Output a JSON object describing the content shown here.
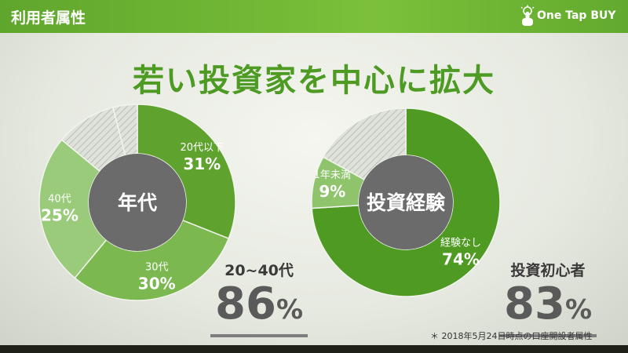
{
  "header": {
    "section_label": "利用者属性",
    "brand": "One Tap BUY"
  },
  "headline": "若い投資家を中心に拡大",
  "chart_data": [
    {
      "type": "pie",
      "center_label": "年代",
      "slices": [
        {
          "label": "20代以下",
          "value_text": "31%",
          "value": 31,
          "color": "#5fa32e",
          "labeled": true
        },
        {
          "label": "30代",
          "value_text": "30%",
          "value": 30,
          "color": "#7cb850",
          "labeled": true
        },
        {
          "label": "40代",
          "value_text": "25%",
          "value": 25,
          "color": "#9acb7a",
          "labeled": true
        },
        {
          "label": "",
          "value": 10,
          "color": "#d4d8cf",
          "labeled": false
        },
        {
          "label": "",
          "value": 4,
          "color": "#c6cbc0",
          "labeled": false
        }
      ]
    },
    {
      "type": "pie",
      "center_label": "投資経験",
      "slices": [
        {
          "label": "経験なし",
          "value_text": "74%",
          "value": 74,
          "color": "#4e9a22",
          "labeled": true
        },
        {
          "label": "1年未満",
          "value_text": "9%",
          "value": 9,
          "color": "#8fc46c",
          "labeled": true
        },
        {
          "label": "",
          "value": 17,
          "color": "#d2d6cd",
          "labeled": false
        }
      ]
    }
  ],
  "summaries": [
    {
      "caption": "20~40代",
      "number": "86",
      "unit": "%"
    },
    {
      "caption": "投資初心者",
      "number": "83",
      "unit": "%"
    }
  ],
  "footnote": "＊ 2018年5月24日時点の口座開設者属性"
}
